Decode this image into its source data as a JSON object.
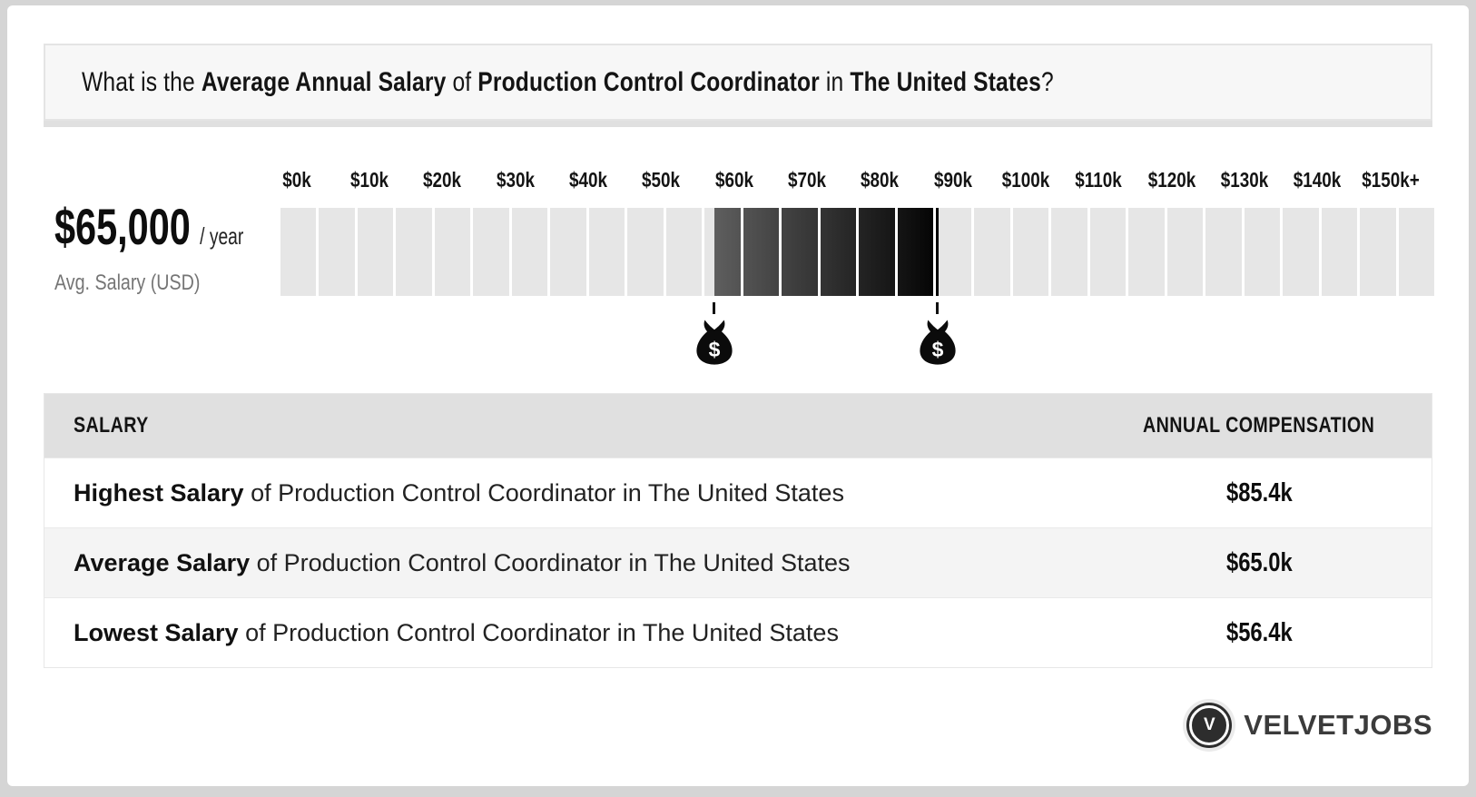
{
  "header": {
    "prefix": "What is the ",
    "bold_salary": "Average Annual Salary",
    "mid_of": " of ",
    "bold_role": "Production Control Coordinator",
    "mid_in": " in ",
    "bold_country": "The United States",
    "suffix": "?"
  },
  "summary": {
    "amount": "$65,000",
    "per": "/ year",
    "caption": "Avg. Salary (USD)"
  },
  "chart_data": {
    "type": "range-scale",
    "axis_min": 0,
    "axis_max": 150,
    "segment_size": 5,
    "tick_labels": [
      "$0k",
      "$10k",
      "$20k",
      "$30k",
      "$40k",
      "$50k",
      "$60k",
      "$70k",
      "$80k",
      "$90k",
      "$100k",
      "$110k",
      "$120k",
      "$130k",
      "$140k",
      "$150k+"
    ],
    "highlight": {
      "low": 56.4,
      "high": 85.4,
      "average": 65.0,
      "low_label": "$56.4k",
      "high_label": "$85.4k",
      "average_label": "$65.0k"
    },
    "marker_symbol": "$",
    "colors": {
      "base_segment": "#e6e6e6",
      "highlight_start": "#5e5e5e",
      "highlight_end": "#040404",
      "marker": "#0b0b0b"
    }
  },
  "table": {
    "header_left": "SALARY",
    "header_right": "ANNUAL COMPENSATION",
    "rows": [
      {
        "term": "Highest Salary",
        "rest": " of Production Control Coordinator in The United States",
        "value": "$85.4k"
      },
      {
        "term": "Average Salary",
        "rest": " of Production Control Coordinator in The United States",
        "value": "$65.0k"
      },
      {
        "term": "Lowest Salary",
        "rest": " of Production Control Coordinator in The United States",
        "value": "$56.4k"
      }
    ]
  },
  "footer": {
    "logo_letter": "V",
    "brand": "VELVETJOBS"
  }
}
